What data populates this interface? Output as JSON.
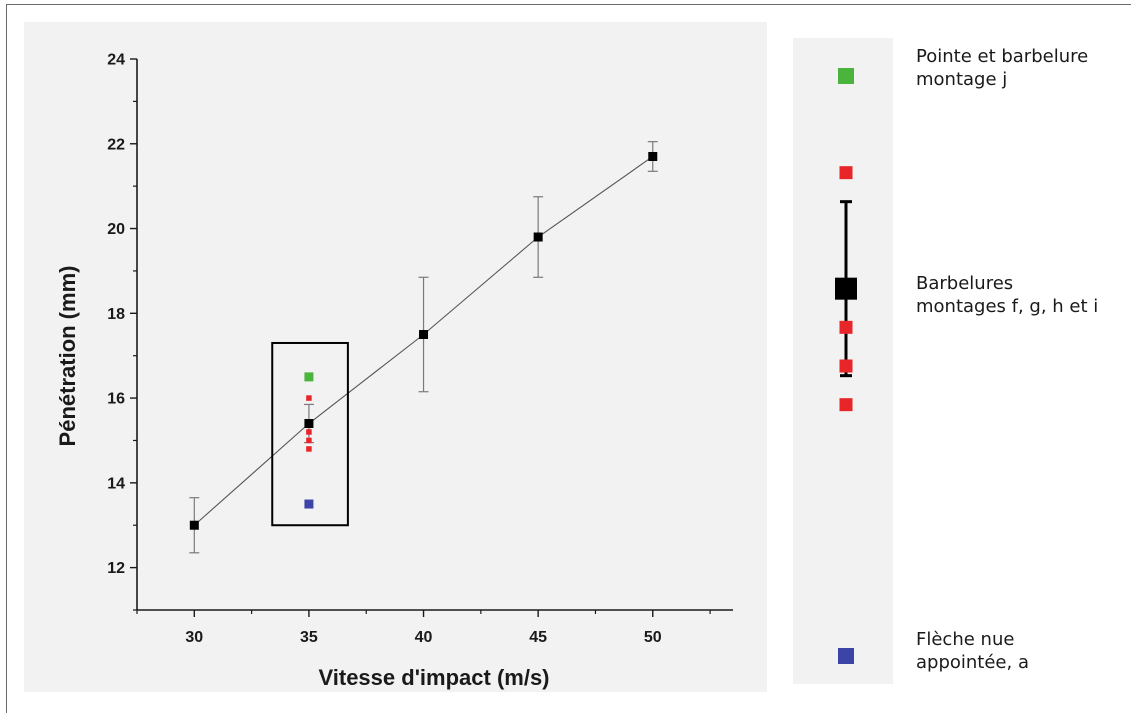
{
  "chart_data": {
    "type": "scatter",
    "xlabel": "Vitesse d'impact (m/s)",
    "ylabel": "Pénétration (mm)",
    "xlim": [
      27.5,
      53.5
    ],
    "ylim": [
      11,
      24
    ],
    "x_ticks": [
      30,
      35,
      40,
      45,
      50
    ],
    "y_ticks": [
      12,
      14,
      16,
      18,
      20,
      22,
      24
    ],
    "grid": false,
    "series": [
      {
        "marker": "square",
        "color": "#000000",
        "connected": true,
        "points": [
          {
            "x": 30,
            "y": 13.0,
            "err_low": 12.35,
            "err_high": 13.65
          },
          {
            "x": 35,
            "y": 15.4,
            "err_low": 14.95,
            "err_high": 15.85
          },
          {
            "x": 40,
            "y": 17.5,
            "err_low": 16.15,
            "err_high": 18.85
          },
          {
            "x": 45,
            "y": 19.8,
            "err_low": 18.85,
            "err_high": 20.75
          },
          {
            "x": 50,
            "y": 21.7,
            "err_low": 21.35,
            "err_high": 22.05
          }
        ]
      },
      {
        "color": "#4ab43c",
        "points": [
          {
            "x": 35,
            "y": 16.5
          }
        ]
      },
      {
        "color": "#e8262a",
        "points": [
          {
            "x": 35,
            "y": 16.0
          },
          {
            "x": 35,
            "y": 15.2
          },
          {
            "x": 35,
            "y": 15.0
          },
          {
            "x": 35,
            "y": 14.8
          }
        ]
      },
      {
        "color": "#3c44a8",
        "points": [
          {
            "x": 35,
            "y": 13.5
          }
        ]
      }
    ],
    "highlight_box": {
      "x": [
        33.4,
        36.7
      ],
      "y": [
        13.0,
        17.3
      ]
    }
  },
  "legend": {
    "entries": [
      {
        "label_lines": [
          "Pointe et barbelure",
          "montage  j"
        ],
        "color": "#4ab43c"
      },
      {
        "label_lines": [
          "Barbelures",
          "montages  f, g, h et i"
        ],
        "color": "#000000"
      },
      {
        "label_lines": [
          "Flèche nue",
          "appointée, a"
        ],
        "color": "#3c44a8"
      }
    ],
    "detail": {
      "green_value": 16.5,
      "red_values": [
        16.0,
        15.2,
        15.0,
        14.8
      ],
      "blue_value": 13.5,
      "mean": 15.4,
      "err_low": 14.95,
      "err_high": 15.85,
      "colors": {
        "green": "#4ab43c",
        "red": "#e8262a",
        "blue": "#3c44a8",
        "mean": "#000000"
      }
    }
  }
}
